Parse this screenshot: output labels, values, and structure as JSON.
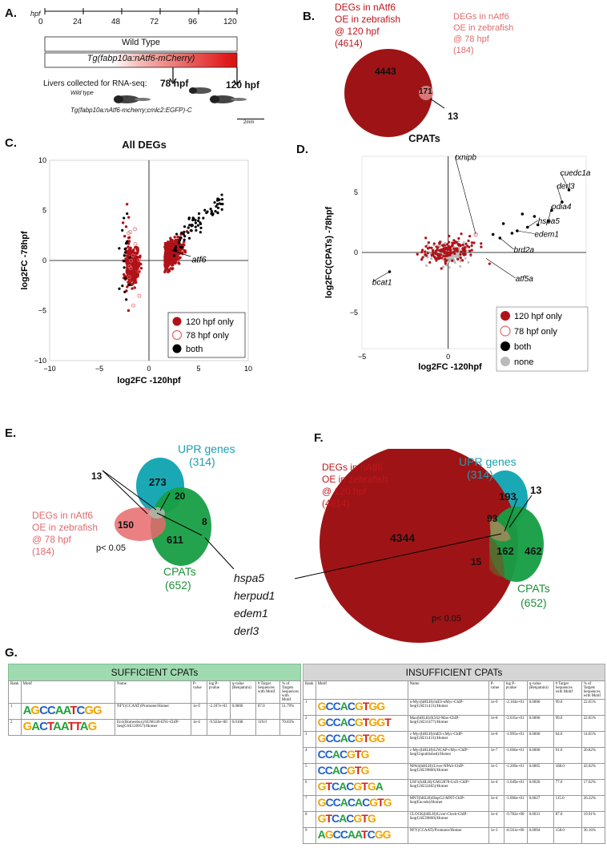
{
  "panels": {
    "a": "A.",
    "b": "B.",
    "c": "C.",
    "d": "D.",
    "e": "E.",
    "f": "F.",
    "g": "G."
  },
  "panelA": {
    "hpf_label": "hpf",
    "ticks": [
      "0",
      "24",
      "48",
      "72",
      "96",
      "120"
    ],
    "wild_type": "Wild Type",
    "transgenic": "Tg(fabp10a:nAtf6-mCherry)",
    "livers": "Livers collected for RNA-seq:",
    "t78": "78 hpf",
    "t120": "120 hpf",
    "img_wt": "Wild type",
    "img_tg": "Tg(fabp10a:nAtf6-mcherry;cmlc2:EGFP)-C",
    "scale": "2mm"
  },
  "panelB": {
    "label120": [
      "DEGs in nAtf6",
      "OE in zebrafish",
      "@ 120 hpf",
      "(4614)"
    ],
    "label78": [
      "DEGs in nAtf6",
      "OE in zebrafish",
      "@ 78 hpf",
      "(184)"
    ],
    "n_main": "4443",
    "n_overlap": "171",
    "n_78only": "13"
  },
  "panelC": {
    "title": "All DEGs",
    "xlabel": "log2FC -120hpf",
    "ylabel": "log2FC -78hpf",
    "annot": "atf6",
    "xticks": [
      "−10",
      "−5",
      "0",
      "5",
      "10"
    ],
    "yticks": [
      "10",
      "5",
      "0",
      "−5",
      "−10"
    ],
    "legend": [
      "120 hpf only",
      "78 hpf only",
      "both"
    ]
  },
  "panelD": {
    "title": "CPATs",
    "xlabel": "log2FC -120hpf",
    "ylabel": "log2FC(CPATs) -78hpf",
    "xticks": [
      "−5",
      "0",
      "5"
    ],
    "yticks": [
      "5",
      "0",
      "−5"
    ],
    "genes": [
      "txnipb",
      "cuedc1a",
      "derl3",
      "pdia4",
      "hspa5",
      "edem1",
      "brd2a",
      "atf5a",
      "bcat1"
    ],
    "legend": [
      "120 hpf only",
      "78 hpf only",
      "both",
      "none"
    ]
  },
  "panelE": {
    "upr": "UPR genes",
    "upr_n": "(314)",
    "cpats": "CPATs",
    "cpats_n": "(652)",
    "degs": [
      "DEGs in nAtf6",
      "OE in zebrafish",
      "@ 78 hpf",
      "(184)"
    ],
    "n273": "273",
    "n20": "20",
    "n13": "13",
    "n8": "8",
    "n150": "150",
    "n611": "611",
    "p": "p< 0.05",
    "genes": [
      "hspa5",
      "herpud1",
      "edem1",
      "derl3"
    ]
  },
  "panelF": {
    "degs": [
      "DEGs in nAtf6",
      "OE in zebrafish",
      "@ 120 hpf",
      "(4614)"
    ],
    "upr": "UPR genes",
    "upr_n": "(314)",
    "cpats": "CPATs",
    "cpats_n": "(652)",
    "n193": "193",
    "n93": "93",
    "n13": "13",
    "n4344": "4344",
    "n15": "15",
    "n162": "162",
    "n462": "462",
    "p": "p< 0.05"
  },
  "panelG": {
    "sufficient": "SUFFICIENT CPATs",
    "insufficient": "INSUFFICIENT CPATs",
    "headers": [
      "Rank",
      "Motif",
      "Name",
      "P-value",
      "log P-pvalue",
      "q-value (Benjamini)",
      "# Target Sequences with Motif",
      "% of Targets Sequences with Motif"
    ],
    "suff_rows": [
      {
        "rank": "1",
        "logo": "AGCCAATCGG",
        "name": "NFY(CCAAT)/Promoter/Homer",
        "p": "1e-9",
        "logp": "-2.107e+01",
        "q": "0.0000",
        "n": "87.0",
        "pct": "51.79%"
      },
      {
        "rank": "2",
        "logo": "GACTAATTAG",
        "name": "En1(Homeobox)/SUM149-EN1-ChIP-Seq(GSE120957)/Homer",
        "p": "1e-4",
        "logp": "-9.924e+00",
        "q": "0.0108",
        "n": "119.0",
        "pct": "70.83%"
      }
    ],
    "insuff_rows": [
      {
        "rank": "1",
        "logo": "GCCACGTGG",
        "name": "n-Myc(bHLH)/mES-nMyc-ChIP-Seq(GSE11431)/Homer",
        "p": "1e-9",
        "logp": "-2.164e+01",
        "q": "0.0000",
        "n": "99.0",
        "pct": "22.65%"
      },
      {
        "rank": "2",
        "logo": "GCCACGTGGT",
        "name": "Max(bHLH)/K562-Max-ChIP-Seq(GSE31477)/Homer",
        "p": "1e-8",
        "logp": "-2.035e+01",
        "q": "0.0000",
        "n": "99.0",
        "pct": "22.65%"
      },
      {
        "rank": "3",
        "logo": "GCCACGTGG",
        "name": "c-Myc(bHLH)/mES-cMyc-ChIP-Seq(GSE11431)/Homer",
        "p": "1e-8",
        "logp": "-1.995e+01",
        "q": "0.0000",
        "n": "64.0",
        "pct": "14.65%"
      },
      {
        "rank": "4",
        "logo": "CCACGTG",
        "name": "c-Myc(bHLH)/LNCAP-cMyc-ChIP-Seq(Unpublished)/Homer",
        "p": "1e-7",
        "logp": "-1.666e+01",
        "q": "0.0000",
        "n": "91.0",
        "pct": "20.82%"
      },
      {
        "rank": "5",
        "logo": "CCACGTG",
        "name": "NPAS(bHLH)/Liver-NPAS-ChIP-Seq(GSE39860)/Homer",
        "p": "1e-5",
        "logp": "-1.209e+01",
        "q": "0.0005",
        "n": "188.0",
        "pct": "43.02%"
      },
      {
        "rank": "6",
        "logo": "GTCACGTGA",
        "name": "USF1(bHLH)/GM12878-Usf1-ChIP-Seq(GSE32465)/Homer",
        "p": "1e-4",
        "logp": "-1.049e+01",
        "q": "0.0020",
        "n": "77.0",
        "pct": "17.62%"
      },
      {
        "rank": "7",
        "logo": "GCCACACGTG",
        "name": "MNT(bHLH)/HepG2-MNT-ChIP-Seq(Encode)/Homer",
        "p": "1e-4",
        "logp": "-1.006e+01",
        "q": "0.0027",
        "n": "115.0",
        "pct": "26.32%"
      },
      {
        "rank": "8",
        "logo": "GTCACGTG",
        "name": "CLOCK(bHLH)/Liver-Clock-ChIP-Seq(GSE39860)/Homer",
        "p": "1e-4",
        "logp": "-9.782e+00",
        "q": "0.0031",
        "n": "87.0",
        "pct": "19.91%"
      },
      {
        "rank": "9",
        "logo": "AGCCAATCGG",
        "name": "NFY(CCAAT)/Promoter/Homer",
        "p": "1e-3",
        "logp": "-8.561e+00",
        "q": "0.0094",
        "n": "158.0",
        "pct": "36.16%"
      }
    ]
  },
  "chart_data": [
    {
      "type": "scatter",
      "title": "All DEGs",
      "xlabel": "log2FC -120hpf",
      "ylabel": "log2FC -78hpf",
      "xlim": [
        -10,
        10
      ],
      "ylim": [
        -10,
        10
      ],
      "series": [
        {
          "name": "120 hpf only",
          "color": "#b01218"
        },
        {
          "name": "78 hpf only",
          "color": "#e06b6f"
        },
        {
          "name": "both",
          "color": "#000000"
        }
      ],
      "legend": "bottom-right"
    },
    {
      "type": "scatter",
      "title": "CPATs",
      "xlabel": "log2FC -120hpf",
      "ylabel": "log2FC(CPATs) -78hpf",
      "xlim": [
        -5,
        8
      ],
      "ylim": [
        -8,
        8
      ],
      "series": [
        {
          "name": "120 hpf only",
          "color": "#b01218"
        },
        {
          "name": "78 hpf only",
          "color": "#e06b6f"
        },
        {
          "name": "both",
          "color": "#000000"
        },
        {
          "name": "none",
          "color": "#bbbbbb"
        }
      ],
      "legend": "bottom-right"
    }
  ]
}
